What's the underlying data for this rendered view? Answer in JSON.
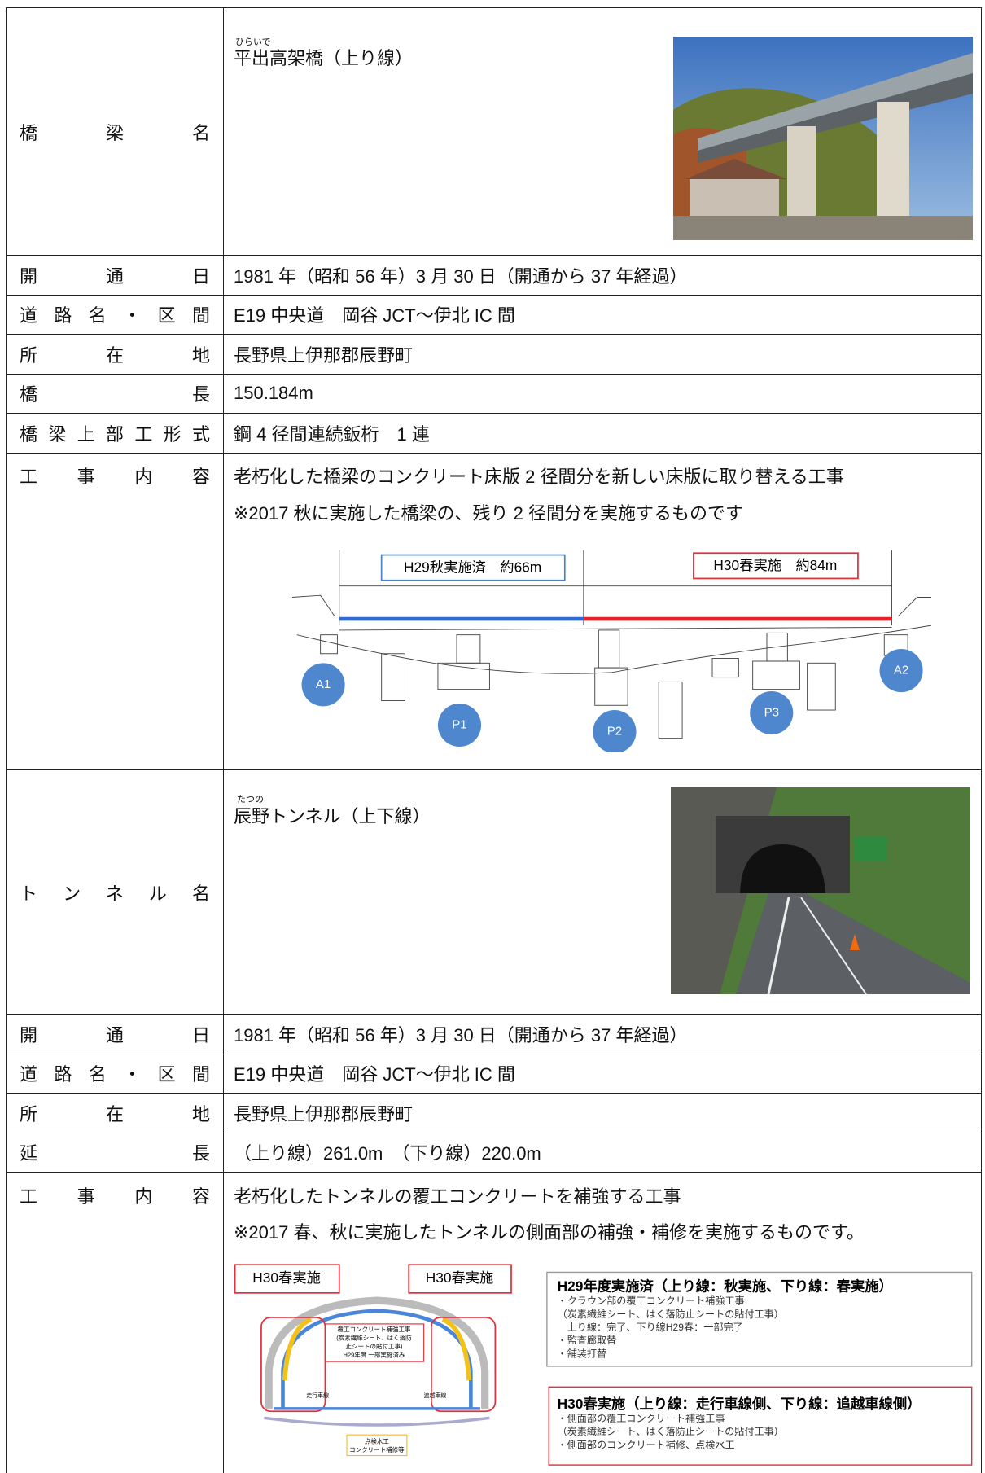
{
  "bridge": {
    "label": "橋梁名",
    "name_ruby": "ひらいで",
    "name": "平出高架橋（上り線）",
    "rows": [
      {
        "label": "開通日",
        "value": "1981 年（昭和 56 年）3 月 30 日（開通から 37 年経過）"
      },
      {
        "label": "道路名・区間",
        "value": "E19 中央道　岡谷 JCT～伊北 IC 間"
      },
      {
        "label": "所在地",
        "value": "長野県上伊那郡辰野町"
      },
      {
        "label": "橋長",
        "value": "150.184m"
      },
      {
        "label": "橋梁上部工形式",
        "value": "鋼 4 径間連続鈑桁　1 連"
      }
    ],
    "work": {
      "label": "工事内容",
      "lines": [
        "老朽化した橋梁のコンクリート床版 2 径間分を新しい床版に取り替える工事",
        "※2017 秋に実施した橋梁の、残り 2 径間分を実施するものです"
      ]
    },
    "diagram": {
      "done": "H29秋実施済　約66m",
      "plan": "H30春実施　約84m",
      "supports": [
        "A1",
        "P1",
        "P2",
        "P3",
        "A2"
      ]
    }
  },
  "tunnel": {
    "label": "トンネル名",
    "name_ruby": "たつの",
    "name": "辰野トンネル（上下線）",
    "rows": [
      {
        "label": "開通日",
        "value": "1981 年（昭和 56 年）3 月 30 日（開通から 37 年経過）"
      },
      {
        "label": "道路名・区間",
        "value": "E19 中央道　岡谷 JCT～伊北 IC 間"
      },
      {
        "label": "所在地",
        "value": "長野県上伊那郡辰野町"
      },
      {
        "label": "延長",
        "value": "（上り線）261.0m　（下り線）220.0m"
      }
    ],
    "work": {
      "label": "工事内容",
      "lines": [
        "老朽化したトンネルの覆工コンクリートを補強する工事",
        "※2017 春、秋に実施したトンネルの側面部の補強・補修を実施するものです。"
      ]
    },
    "diagram": {
      "tag_left": "H30春実施",
      "tag_right": "H30春実施",
      "center_note": [
        "覆工コンクリート補強工事",
        "(炭素繊維シート、はく落防",
        "止シートの貼付工事)",
        "H29年度 一部実施済み"
      ],
      "lane_left": "走行車線",
      "lane_right": "追越車線",
      "bottom_note": [
        "点検水工",
        "コンクリート補修等"
      ],
      "box1": {
        "title": "H29年度実施済（上り線：秋実施、下り線：春実施）",
        "lines": [
          "・クラウン部の覆工コンクリート補強工事",
          "（炭素繊維シート、はく落防止シートの貼付工事）",
          "　上り線：完了、下り線H29春：一部完了",
          "・監査廊取替",
          "・舗装打替"
        ]
      },
      "box2": {
        "title": "H30春実施（上り線：走行車線側、下り線：追越車線側）",
        "lines": [
          "・側面部の覆工コンクリート補強工事",
          "（炭素繊維シート、はく落防止シートの貼付工事）",
          "・側面部のコンクリート補修、点検水工"
        ]
      }
    }
  }
}
